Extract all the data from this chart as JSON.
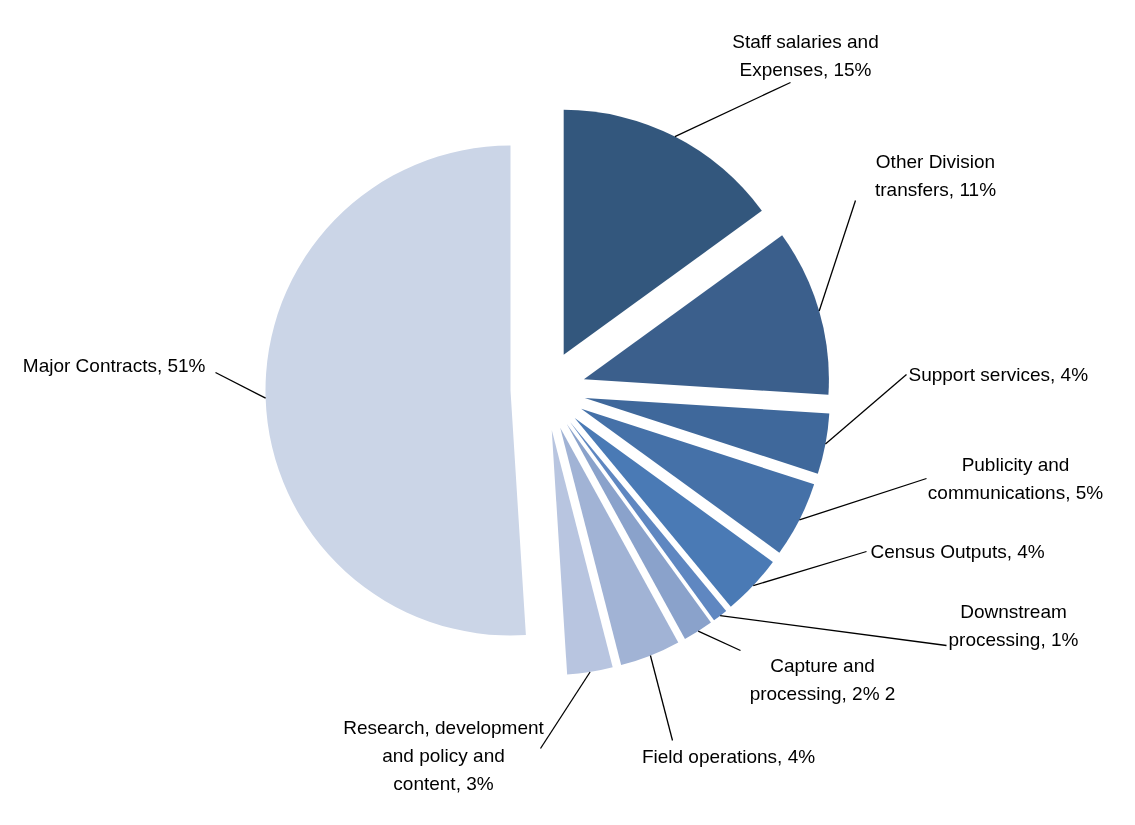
{
  "chart_data": {
    "type": "pie",
    "categories": [
      "Staff salaries and Expenses",
      "Other Division transfers",
      "Support services",
      "Publicity and communications",
      "Census Outputs",
      "Downstream processing",
      "Capture and processing",
      "Field operations",
      "Research, development and policy and content",
      "Major Contracts"
    ],
    "values": [
      15,
      11,
      4,
      5,
      4,
      1,
      2,
      4,
      3,
      51
    ],
    "value_labels": [
      "15%",
      "11%",
      "4%",
      "5%",
      "4%",
      "1%",
      "2% 2",
      "4%",
      "3%",
      "51%"
    ],
    "colors": [
      "#33577d",
      "#3b5f8c",
      "#3f689b",
      "#4571a8",
      "#4a7ab5",
      "#5f87c1",
      "#8aa2cb",
      "#a1b3d5",
      "#b8c5e0",
      "#cbd5e7"
    ]
  }
}
